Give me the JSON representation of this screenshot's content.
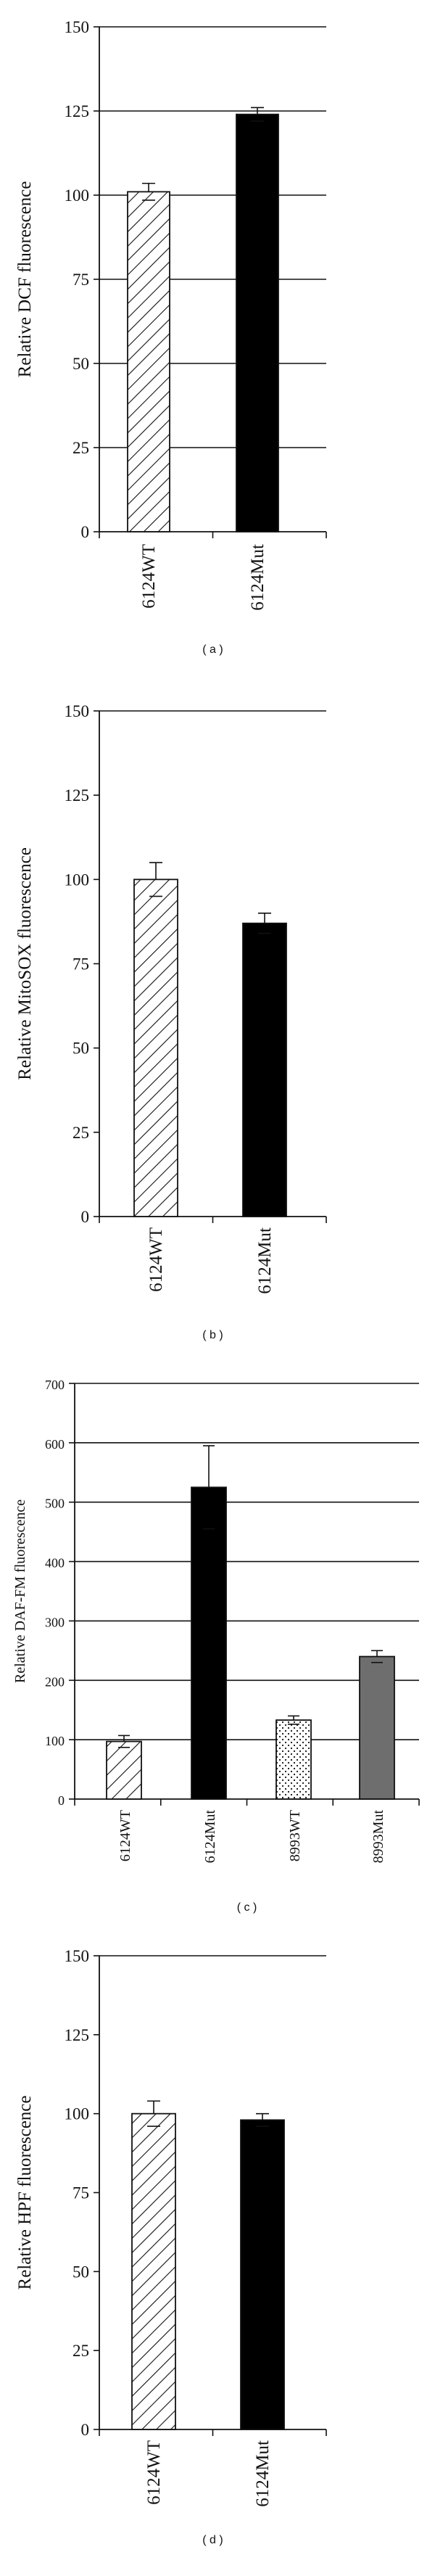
{
  "chart_data": [
    {
      "type": "bar",
      "panel_label": "( a )",
      "ylabel": "Relative DCF fluorescence",
      "xlabel": "",
      "ylim": [
        0,
        150
      ],
      "yticks": [
        0,
        25,
        50,
        75,
        100,
        125,
        150
      ],
      "grid": true,
      "categories": [
        "6124WT",
        "6124Mut"
      ],
      "values": [
        101,
        124
      ],
      "errors": [
        2.5,
        2.0
      ],
      "fills": [
        "hatch",
        "solid-black"
      ]
    },
    {
      "type": "bar",
      "panel_label": "( b )",
      "ylabel": "Relative MitoSOX fluorescence",
      "xlabel": "",
      "ylim": [
        0,
        150
      ],
      "yticks": [
        0,
        25,
        50,
        75,
        100,
        125,
        150
      ],
      "grid": false,
      "categories": [
        "6124WT",
        "6124Mut"
      ],
      "values": [
        100,
        87
      ],
      "errors": [
        5,
        3
      ],
      "fills": [
        "hatch",
        "solid-black"
      ]
    },
    {
      "type": "bar",
      "panel_label": "( c )",
      "ylabel": "Relative DAF-FM fluorescence",
      "xlabel": "",
      "ylim": [
        0,
        700
      ],
      "yticks": [
        0,
        100,
        200,
        300,
        400,
        500,
        600,
        700
      ],
      "grid": true,
      "categories": [
        "6124WT",
        "6124Mut",
        "8993WT",
        "8993Mut"
      ],
      "values": [
        97,
        525,
        133,
        240
      ],
      "errors": [
        10,
        70,
        7,
        10
      ],
      "fills": [
        "hatch",
        "solid-black",
        "dots",
        "solid-gray"
      ]
    },
    {
      "type": "bar",
      "panel_label": "( d )",
      "ylabel": "Relative HPF fluorescence",
      "xlabel": "",
      "ylim": [
        0,
        150
      ],
      "yticks": [
        0,
        25,
        50,
        75,
        100,
        125,
        150
      ],
      "grid": false,
      "categories": [
        "6124WT",
        "6124Mut"
      ],
      "values": [
        100,
        98
      ],
      "errors": [
        4,
        2
      ],
      "fills": [
        "hatch",
        "solid-black"
      ]
    }
  ]
}
